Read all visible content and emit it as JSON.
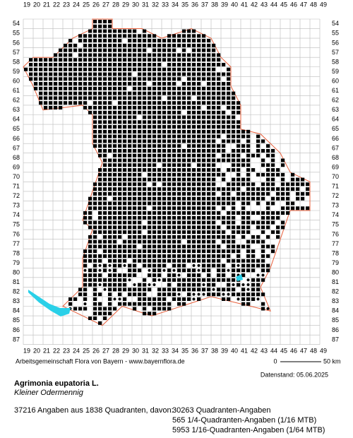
{
  "map": {
    "x_labels": [
      19,
      20,
      21,
      22,
      23,
      24,
      25,
      26,
      27,
      28,
      29,
      30,
      31,
      32,
      33,
      34,
      35,
      36,
      37,
      38,
      39,
      40,
      41,
      42,
      43,
      44,
      45,
      46,
      47,
      48,
      49
    ],
    "y_labels": [
      54,
      55,
      56,
      57,
      58,
      59,
      60,
      61,
      62,
      63,
      64,
      65,
      66,
      67,
      68,
      69,
      70,
      71,
      72,
      73,
      74,
      75,
      76,
      77,
      78,
      79,
      80,
      81,
      82,
      83,
      84,
      85,
      86,
      87
    ],
    "credit": "Arbeitsgemeinschaft Flora von Bayern - www.bayernflora.de",
    "scale": {
      "zero": "0",
      "length": "50 km"
    },
    "date": "Datenstand: 05.06.2025"
  },
  "title": "Agrimonia eupatoria L.",
  "subtitle": "Kleiner Odermennig",
  "summary": "37216 Angaben aus 1838 Quadranten, davon:",
  "breakdown": [
    "30263 Quadranten-Angaben",
    "565 1/4-Quadranten-Angaben (1/16 MTB)",
    "5953 1/16-Quadranten-Angaben (1/64 MTB)"
  ]
}
